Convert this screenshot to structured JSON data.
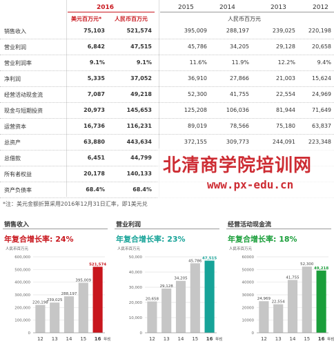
{
  "header": {
    "year_2016": "2016",
    "usd_col": "美元百万元*",
    "rmb_col": "人民币百万元",
    "years": [
      "2015",
      "2014",
      "2013",
      "2012"
    ],
    "rmb_unit": "人民币百万元"
  },
  "rows": [
    {
      "label": "销售收入",
      "usd": "75,103",
      "rmb2016": "521,574",
      "y2015": "395,009",
      "y2014": "288,197",
      "y2013": "239,025",
      "y2012": "220,198"
    },
    {
      "label": "营业利润",
      "usd": "6,842",
      "rmb2016": "47,515",
      "y2015": "45,786",
      "y2014": "34,205",
      "y2013": "29,128",
      "y2012": "20,658"
    },
    {
      "label": "营业利润率",
      "usd": "9.1%",
      "rmb2016": "9.1%",
      "y2015": "11.6%",
      "y2014": "11.9%",
      "y2013": "12.2%",
      "y2012": "9.4%"
    },
    {
      "label": "净利润",
      "usd": "5,335",
      "rmb2016": "37,052",
      "y2015": "36,910",
      "y2014": "27,866",
      "y2013": "21,003",
      "y2012": "15,624"
    },
    {
      "label": "经营活动现金流",
      "usd": "7,087",
      "rmb2016": "49,218",
      "y2015": "52,300",
      "y2014": "41,755",
      "y2013": "22,554",
      "y2012": "24,969"
    },
    {
      "label": "现金与短期投资",
      "usd": "20,973",
      "rmb2016": "145,653",
      "y2015": "125,208",
      "y2014": "106,036",
      "y2013": "81,944",
      "y2012": "71,649"
    },
    {
      "label": "运营资本",
      "usd": "16,736",
      "rmb2016": "116,231",
      "y2015": "89,019",
      "y2014": "78,566",
      "y2013": "75,180",
      "y2012": "63,837"
    },
    {
      "label": "总资产",
      "usd": "63,880",
      "rmb2016": "443,634",
      "y2015": "372,155",
      "y2014": "309,773",
      "y2013": "244,091",
      "y2012": "223,348"
    },
    {
      "label": "总借款",
      "usd": "6,451",
      "rmb2016": "44,799",
      "y2015": "",
      "y2014": "",
      "y2013": "",
      "y2012": ""
    },
    {
      "label": "所有者权益",
      "usd": "20,178",
      "rmb2016": "140,133",
      "y2015": "",
      "y2014": "",
      "y2013": "",
      "y2012": ""
    },
    {
      "label": "资产负债率",
      "usd": "68.4%",
      "rmb2016": "68.4%",
      "y2015": "",
      "y2014": "",
      "y2013": "",
      "y2012": ""
    }
  ],
  "note": "*注：美元金额折算采用2016年12月31日汇率，即1美元兑",
  "watermark": {
    "line1": "北清商学院培训网",
    "line2": "www.px-edu.cn"
  },
  "charts": [
    {
      "title": "销售收入",
      "cagr": "年复合增长率: 24%",
      "unit": "人民币百万元",
      "color": "#c8161d"
    },
    {
      "title": "营业利润",
      "cagr": "年复合增长率: 23%",
      "unit": "人民币百万元",
      "color": "#17a398"
    },
    {
      "title": "经营活动现金流",
      "cagr": "年复合增长率: 18%",
      "unit": "人民币百万元",
      "color": "#1a9e3a"
    }
  ],
  "chart_data": [
    {
      "type": "bar",
      "title": "销售收入",
      "categories": [
        "12",
        "13",
        "14",
        "15",
        "16"
      ],
      "values": [
        220198,
        239025,
        288197,
        395009,
        521574
      ],
      "value_labels": [
        "220,198",
        "239,025",
        "288,197",
        "395,009",
        "521,574"
      ],
      "xlabel_suffix": "年份",
      "ylim": [
        0,
        600000
      ],
      "yticks": [
        "0",
        "100,000",
        "200,000",
        "300,000",
        "400,000",
        "500,000",
        "600,000"
      ],
      "yticks_values": [
        0,
        100000,
        200000,
        300000,
        400000,
        500000,
        600000
      ],
      "highlight_color": "#c8161d"
    },
    {
      "type": "bar",
      "title": "营业利润",
      "categories": [
        "12",
        "13",
        "14",
        "15",
        "16"
      ],
      "values": [
        20658,
        29128,
        34205,
        45786,
        47515
      ],
      "value_labels": [
        "20,658",
        "29,128",
        "34,205",
        "45,786",
        "47,515"
      ],
      "xlabel_suffix": "年份",
      "ylim": [
        0,
        50000
      ],
      "yticks": [
        "0",
        "10,000",
        "20,000",
        "30,000",
        "40,000",
        "50,000"
      ],
      "yticks_values": [
        0,
        10000,
        20000,
        30000,
        40000,
        50000
      ],
      "highlight_color": "#17a398"
    },
    {
      "type": "bar",
      "title": "经营活动现金流",
      "categories": [
        "12",
        "13",
        "14",
        "15",
        "16"
      ],
      "values": [
        24969,
        22554,
        41755,
        52300,
        49218
      ],
      "value_labels": [
        "24,969",
        "22,554",
        "41,755",
        "52,300",
        "49,218"
      ],
      "xlabel_suffix": "年份",
      "ylim": [
        0,
        60000
      ],
      "yticks": [
        "0",
        "10000",
        "20000",
        "30000",
        "40000",
        "50000",
        "60000"
      ],
      "yticks_values": [
        0,
        10000,
        20000,
        30000,
        40000,
        50000,
        60000
      ],
      "highlight_color": "#1a9e3a"
    }
  ]
}
